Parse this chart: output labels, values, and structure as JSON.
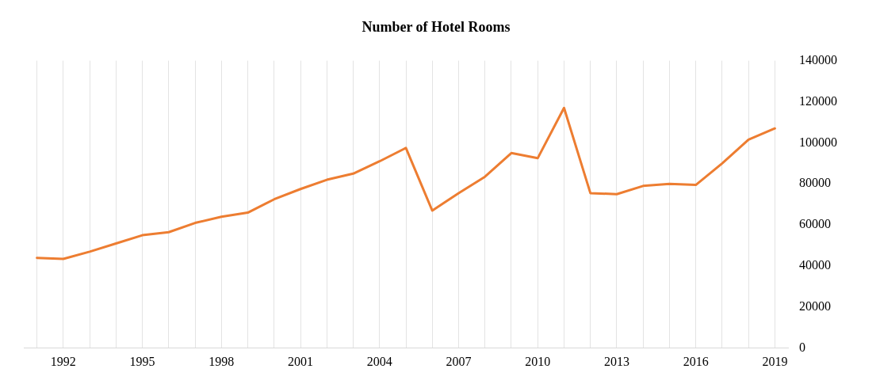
{
  "chart_data": {
    "type": "line",
    "title": "Number of Hotel Rooms",
    "categories": [
      null,
      "1992",
      null,
      null,
      "1995",
      null,
      null,
      "1998",
      null,
      null,
      "2001",
      null,
      null,
      "2004",
      null,
      null,
      "2007",
      null,
      null,
      "2010",
      null,
      null,
      "2013",
      null,
      null,
      "2016",
      null,
      null,
      "2019"
    ],
    "series": [
      {
        "color": "#ed7d31",
        "values": [
          44000,
          43500,
          47000,
          51000,
          55000,
          56500,
          61000,
          64000,
          66000,
          72500,
          77500,
          82000,
          85000,
          91000,
          97500,
          67000,
          75500,
          83500,
          95000,
          92500,
          117000,
          75500,
          75000,
          79000,
          80000,
          79500,
          90000,
          101500,
          107000
        ]
      }
    ],
    "ylim": [
      0,
      140000
    ],
    "yticks": [
      0,
      20000,
      40000,
      60000,
      80000,
      100000,
      120000,
      140000
    ],
    "grid": "x",
    "legend": false,
    "marker": "none",
    "line_style": "solid"
  }
}
